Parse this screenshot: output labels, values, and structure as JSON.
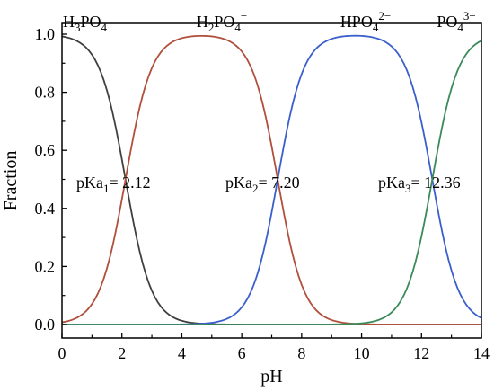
{
  "chart_data": {
    "type": "line",
    "title": "",
    "xlabel": "pH",
    "ylabel": "Fraction",
    "xlim": [
      0,
      14
    ],
    "ylim": [
      0,
      1.05
    ],
    "x_ticks": [
      "0",
      "2",
      "4",
      "6",
      "8",
      "10",
      "12",
      "14"
    ],
    "y_ticks": [
      "0.0",
      "0.2",
      "0.4",
      "0.6",
      "0.8",
      "1.0"
    ],
    "grid": false,
    "pKa": [
      2.12,
      7.2,
      12.36
    ],
    "ph_step": 0.1,
    "series": [
      {
        "name": "H3PO4",
        "color": "#404040",
        "label": {
          "base": "H",
          "sub1": "3",
          "mid": "PO",
          "sub2": "4",
          "sup": ""
        }
      },
      {
        "name": "H2PO4−",
        "color": "#b0503c",
        "label": {
          "base": "H",
          "sub1": "2",
          "mid": "PO",
          "sub2": "4",
          "sup": "−"
        }
      },
      {
        "name": "HPO42−",
        "color": "#3a5fcd",
        "label": {
          "base": "",
          "sub1": "",
          "mid": "HPO",
          "sub2": "4",
          "sup": "2−"
        }
      },
      {
        "name": "PO43−",
        "color": "#3a8a5a",
        "label": {
          "base": "",
          "sub1": "",
          "mid": "PO",
          "sub2": "4",
          "sup": "3−"
        }
      }
    ],
    "annotations": [
      {
        "prefix": "pKa",
        "sub": "1",
        "value": "= 2.12"
      },
      {
        "prefix": "pKa",
        "sub": "2",
        "value": "= 7.20"
      },
      {
        "prefix": "pKa",
        "sub": "3",
        "value": "= 12.36"
      }
    ]
  }
}
